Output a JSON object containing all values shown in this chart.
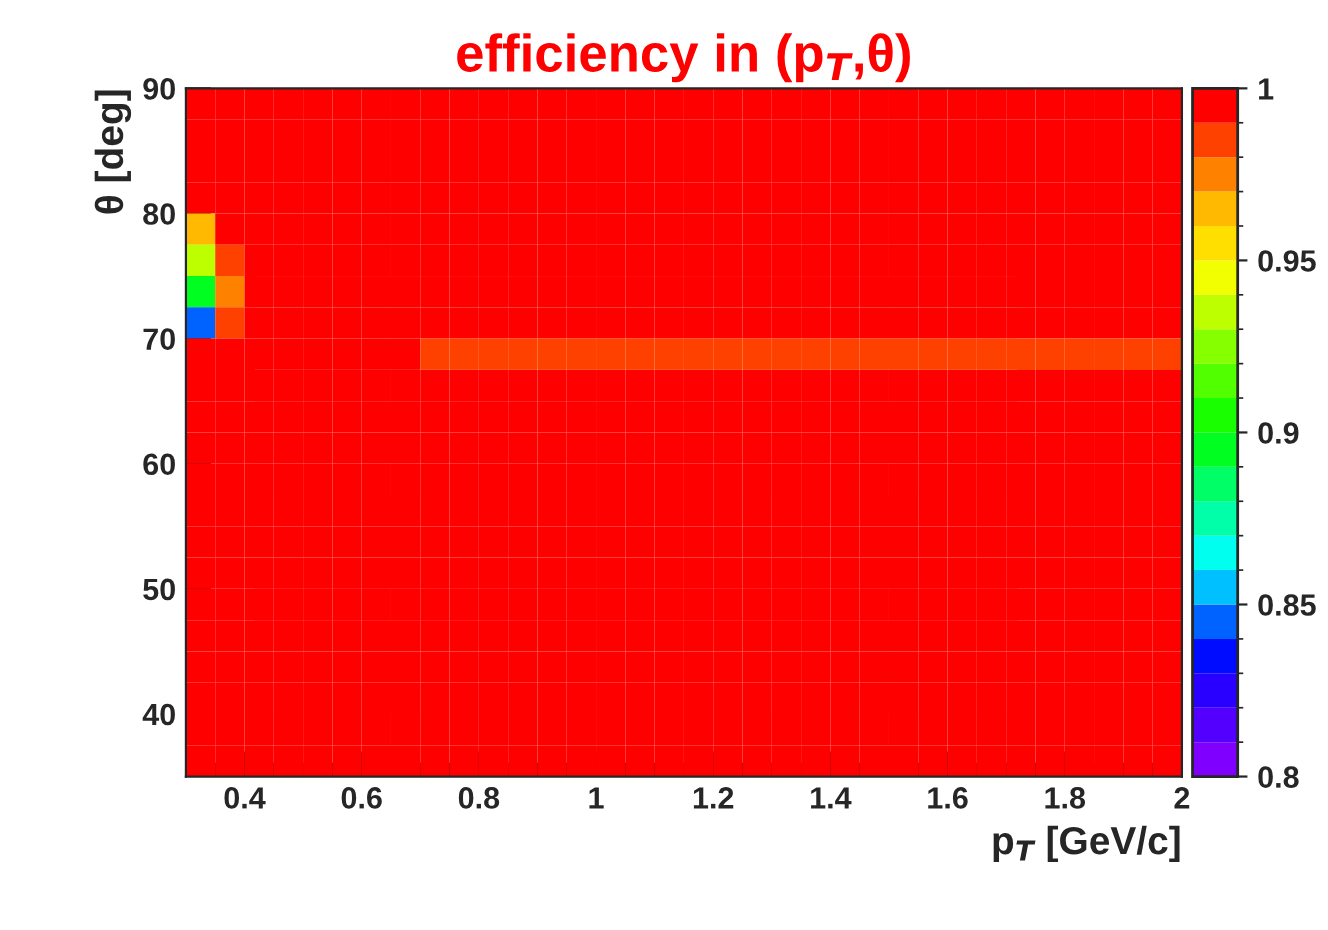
{
  "chart_data": {
    "type": "heatmap",
    "title": "efficiency in (p$_{T}$,θ)",
    "xlabel": "p$_{T}$ [GeV/c]",
    "ylabel": "θ [deg]",
    "x": [
      0.325,
      0.375,
      0.425,
      0.475,
      0.525,
      0.575,
      0.625,
      0.675,
      0.725,
      0.775,
      0.825,
      0.875,
      0.925,
      0.975,
      1.025,
      1.075,
      1.125,
      1.175,
      1.225,
      1.275,
      1.325,
      1.375,
      1.425,
      1.475,
      1.525,
      1.575,
      1.625,
      1.675,
      1.725,
      1.775,
      1.825,
      1.875,
      1.925,
      1.975
    ],
    "y": [
      88.75,
      86.25,
      83.75,
      81.25,
      78.75,
      76.25,
      73.75,
      71.25,
      68.75,
      66.25,
      63.75,
      61.25,
      58.75,
      56.25,
      53.75,
      51.25,
      48.75,
      46.25,
      43.75,
      41.25,
      38.75,
      36.25
    ],
    "xlim": [
      0.3,
      2
    ],
    "xticks": [
      0.4,
      0.6,
      0.8,
      1,
      1.2,
      1.4,
      1.6,
      1.8,
      2
    ],
    "ylim": [
      35,
      90
    ],
    "yticks": [
      40,
      50,
      60,
      70,
      80,
      90
    ],
    "clim": [
      0.8,
      1
    ],
    "cticks": [
      0.8,
      0.85,
      0.9,
      0.95,
      1
    ],
    "cells": [
      [
        1,
        1,
        1,
        1,
        1,
        1,
        1,
        1,
        1,
        1,
        1,
        1,
        1,
        1,
        1,
        1,
        1,
        1,
        1,
        1,
        1,
        1,
        1,
        1,
        1,
        1,
        1,
        1,
        1,
        1,
        1,
        1,
        1,
        1
      ],
      [
        1,
        1,
        1,
        1,
        1,
        1,
        1,
        1,
        1,
        1,
        1,
        1,
        1,
        1,
        1,
        1,
        1,
        1,
        1,
        1,
        1,
        1,
        1,
        1,
        1,
        1,
        1,
        1,
        1,
        1,
        1,
        1,
        1,
        1
      ],
      [
        1,
        1,
        1,
        1,
        1,
        1,
        1,
        1,
        1,
        1,
        1,
        1,
        1,
        1,
        1,
        1,
        1,
        1,
        1,
        1,
        1,
        1,
        1,
        1,
        1,
        1,
        1,
        1,
        1,
        1,
        1,
        1,
        1,
        1
      ],
      [
        0.99,
        1,
        1,
        1,
        1,
        1,
        1,
        1,
        1,
        1,
        1,
        1,
        1,
        1,
        1,
        1,
        1,
        1,
        1,
        1,
        1,
        1,
        1,
        1,
        1,
        1,
        1,
        1,
        1,
        1,
        1,
        1,
        1,
        1
      ],
      [
        0.96,
        0.99,
        1,
        1,
        1,
        1,
        1,
        1,
        1,
        1,
        1,
        1,
        1,
        1,
        1,
        1,
        1,
        1,
        1,
        1,
        1,
        1,
        1,
        1,
        1,
        1,
        1,
        1,
        1,
        1,
        1,
        1,
        1,
        1
      ],
      [
        0.93,
        0.98,
        1,
        1,
        1,
        1,
        1,
        1,
        1,
        1,
        1,
        1,
        1,
        1,
        1,
        1,
        1,
        1,
        1,
        1,
        1,
        1,
        1,
        1,
        1,
        1,
        1,
        1,
        1,
        1,
        1,
        1,
        1,
        1
      ],
      [
        0.89,
        0.97,
        1,
        1,
        1,
        1,
        1,
        1,
        1,
        1,
        1,
        1,
        1,
        1,
        1,
        1,
        1,
        1,
        1,
        1,
        1,
        1,
        1,
        1,
        1,
        1,
        1,
        1,
        1,
        1,
        1,
        1,
        1,
        1
      ],
      [
        0.85,
        0.985,
        1,
        1,
        1,
        1,
        1,
        1,
        1,
        1,
        1,
        1,
        1,
        1,
        1,
        1,
        1,
        1,
        1,
        1,
        1,
        1,
        1,
        1,
        1,
        1,
        1,
        1,
        1,
        1,
        1,
        1,
        1,
        1
      ],
      [
        1,
        1,
        1,
        1,
        1,
        1,
        1,
        1,
        0.985,
        0.985,
        0.985,
        0.985,
        0.985,
        0.985,
        0.985,
        0.985,
        0.985,
        0.985,
        0.985,
        0.985,
        0.985,
        0.985,
        0.985,
        0.985,
        0.985,
        0.985,
        0.985,
        0.985,
        0.985,
        0.985,
        0.985,
        0.985,
        0.985,
        0.985
      ],
      [
        1,
        1,
        1,
        1,
        1,
        1,
        1,
        1,
        1,
        1,
        1,
        1,
        1,
        1,
        1,
        1,
        1,
        1,
        1,
        1,
        1,
        1,
        1,
        1,
        1,
        1,
        1,
        1,
        1,
        1,
        1,
        1,
        1,
        1
      ],
      [
        1,
        1,
        1,
        1,
        1,
        1,
        1,
        1,
        1,
        1,
        1,
        1,
        1,
        1,
        1,
        1,
        1,
        1,
        1,
        1,
        1,
        1,
        1,
        1,
        1,
        1,
        1,
        1,
        1,
        1,
        1,
        1,
        1,
        1
      ],
      [
        1,
        1,
        1,
        1,
        1,
        1,
        1,
        1,
        1,
        1,
        1,
        1,
        1,
        1,
        1,
        1,
        1,
        1,
        1,
        1,
        1,
        1,
        1,
        1,
        1,
        1,
        1,
        1,
        1,
        1,
        1,
        1,
        1,
        1
      ],
      [
        1,
        1,
        1,
        1,
        1,
        1,
        1,
        1,
        1,
        1,
        1,
        1,
        1,
        1,
        1,
        1,
        1,
        1,
        1,
        1,
        1,
        1,
        1,
        1,
        1,
        1,
        1,
        1,
        1,
        1,
        1,
        1,
        1,
        1
      ],
      [
        1,
        1,
        1,
        1,
        1,
        1,
        1,
        1,
        1,
        1,
        1,
        1,
        1,
        1,
        1,
        1,
        1,
        1,
        1,
        1,
        1,
        1,
        1,
        1,
        1,
        1,
        1,
        1,
        1,
        1,
        1,
        1,
        1,
        1
      ],
      [
        1,
        1,
        1,
        1,
        1,
        1,
        1,
        1,
        1,
        1,
        1,
        1,
        1,
        1,
        1,
        1,
        1,
        1,
        1,
        1,
        1,
        1,
        1,
        1,
        1,
        1,
        1,
        1,
        1,
        1,
        1,
        1,
        1,
        1
      ],
      [
        1,
        1,
        1,
        1,
        1,
        1,
        1,
        1,
        1,
        1,
        1,
        1,
        1,
        1,
        1,
        1,
        1,
        1,
        1,
        1,
        1,
        1,
        1,
        1,
        1,
        1,
        1,
        1,
        1,
        1,
        1,
        1,
        1,
        1
      ],
      [
        1,
        1,
        1,
        1,
        1,
        1,
        1,
        1,
        1,
        1,
        1,
        1,
        1,
        1,
        1,
        1,
        1,
        1,
        1,
        1,
        1,
        1,
        1,
        1,
        1,
        1,
        1,
        1,
        1,
        1,
        1,
        1,
        1,
        1
      ],
      [
        1,
        1,
        1,
        1,
        1,
        1,
        1,
        1,
        1,
        1,
        1,
        1,
        1,
        1,
        1,
        1,
        1,
        1,
        1,
        1,
        1,
        1,
        1,
        1,
        1,
        1,
        1,
        1,
        1,
        1,
        1,
        1,
        1,
        1
      ],
      [
        1,
        1,
        1,
        1,
        1,
        1,
        1,
        1,
        1,
        1,
        1,
        1,
        1,
        1,
        1,
        1,
        1,
        1,
        1,
        1,
        1,
        1,
        1,
        1,
        1,
        1,
        1,
        1,
        1,
        1,
        1,
        1,
        1,
        1
      ],
      [
        1,
        1,
        1,
        1,
        1,
        1,
        1,
        1,
        1,
        1,
        1,
        1,
        1,
        1,
        1,
        1,
        1,
        1,
        1,
        1,
        1,
        1,
        1,
        1,
        1,
        1,
        1,
        1,
        1,
        1,
        1,
        1,
        1,
        1
      ],
      [
        1,
        1,
        1,
        1,
        1,
        1,
        1,
        1,
        1,
        1,
        1,
        1,
        1,
        1,
        1,
        1,
        1,
        1,
        1,
        1,
        1,
        1,
        1,
        1,
        1,
        1,
        1,
        1,
        1,
        1,
        1,
        1,
        1,
        1
      ],
      [
        1,
        1,
        1,
        1,
        1,
        1,
        1,
        1,
        1,
        1,
        1,
        1,
        1,
        1,
        1,
        1,
        1,
        1,
        1,
        1,
        1,
        1,
        1,
        1,
        1,
        1,
        1,
        1,
        1,
        1,
        1,
        1,
        1,
        1
      ]
    ]
  }
}
